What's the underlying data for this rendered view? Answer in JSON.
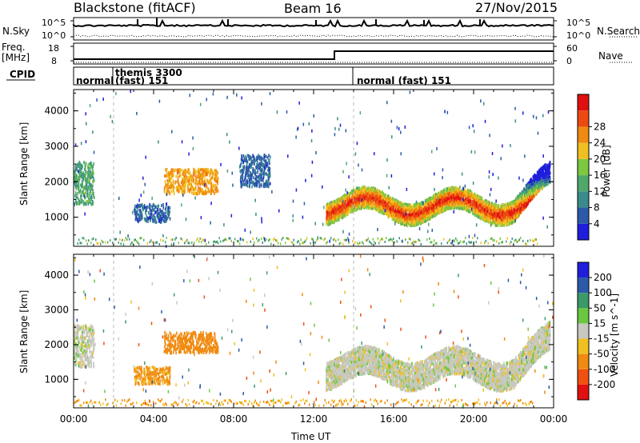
{
  "header": {
    "station": "Blackstone (fitACF)",
    "beam": "Beam 16",
    "date": "27/Nov/2015"
  },
  "strip_labels": {
    "nsky": "N.Sky",
    "nsky_top": "10^5",
    "nsky_bot": "10^0",
    "nsearch": "N.Search",
    "nsearch_top": "10^5",
    "nsearch_bot": "10^0",
    "freq_line1": "Freq.",
    "freq_line2": "[MHz]",
    "freq_top": "18",
    "freq_bot": "8",
    "nave": "Nave",
    "nave_top": "60",
    "nave_bot": "0",
    "cpid": "CPID"
  },
  "cpid_segments": [
    {
      "label": "normal",
      "start_hour": 0.0
    },
    {
      "label": "themis 3300",
      "label2": "(fast) 151",
      "start_hour": 1.5
    },
    {
      "label": "normal (fast) 151",
      "start_hour": 13.8
    }
  ],
  "colors": {
    "power": [
      "#1e1edc",
      "#2c5aa8",
      "#3a8c8c",
      "#4fa86a",
      "#7cc840",
      "#f0c020",
      "#f08a10",
      "#ec4a10",
      "#e01010"
    ],
    "velocity": [
      "#e01010",
      "#f05010",
      "#f08a10",
      "#f0c020",
      "#c8c8c0",
      "#6ac840",
      "#3a9a6a",
      "#2c5aa8",
      "#1e1edc"
    ]
  },
  "chart_data": [
    {
      "type": "heatmap",
      "name": "power",
      "ylabel": "Slant Range [km]",
      "xlabel": "",
      "x_ticks": [
        "00:00",
        "04:00",
        "08:00",
        "12:00",
        "16:00",
        "20:00",
        "00:00"
      ],
      "y_ticks": [
        "1000",
        "2000",
        "3000",
        "4000"
      ],
      "xlim": [
        0,
        24
      ],
      "ylim": [
        180,
        4600
      ],
      "colorbar_label": "Power [dB]",
      "colorbar_ticks": [
        "4",
        "8",
        "12",
        "16",
        "20",
        "24",
        "28"
      ],
      "colorbar_range": [
        0,
        32
      ],
      "echo_regions": [
        {
          "t0": 0.0,
          "t1": 1.0,
          "r0": 1400,
          "r1": 2600,
          "level": 12
        },
        {
          "t0": 4.5,
          "t1": 7.2,
          "r0": 1700,
          "r1": 2400,
          "level": 22
        },
        {
          "t0": 3.0,
          "t1": 4.8,
          "r0": 900,
          "r1": 1400,
          "level": 6
        },
        {
          "t0": 8.3,
          "t1": 9.8,
          "r0": 1900,
          "r1": 2800,
          "level": 6
        },
        {
          "t0": 12.6,
          "t1": 23.8,
          "r0": 900,
          "r1": 2600,
          "level": 26
        }
      ]
    },
    {
      "type": "heatmap",
      "name": "velocity",
      "ylabel": "Slant Range [km]",
      "xlabel": "Time UT",
      "x_ticks": [
        "00:00",
        "04:00",
        "08:00",
        "12:00",
        "16:00",
        "20:00",
        "00:00"
      ],
      "y_ticks": [
        "1000",
        "2000",
        "3000",
        "4000"
      ],
      "xlim": [
        0,
        24
      ],
      "ylim": [
        180,
        4600
      ],
      "colorbar_label": "Velocity [m s^-1]",
      "colorbar_ticks": [
        "200",
        "100",
        "50",
        "15",
        "-15",
        "-50",
        "-100",
        "-200"
      ],
      "echo_regions": [
        {
          "t0": 0.0,
          "t1": 1.0,
          "r0": 1400,
          "r1": 2600,
          "vel": 0
        },
        {
          "t0": 4.5,
          "t1": 7.2,
          "r0": 1800,
          "r1": 2400,
          "vel": -80
        },
        {
          "t0": 3.0,
          "t1": 4.8,
          "r0": 900,
          "r1": 1400,
          "vel": -60
        },
        {
          "t0": 12.6,
          "t1": 23.8,
          "r0": 800,
          "r1": 2600,
          "vel": 0
        }
      ]
    }
  ]
}
